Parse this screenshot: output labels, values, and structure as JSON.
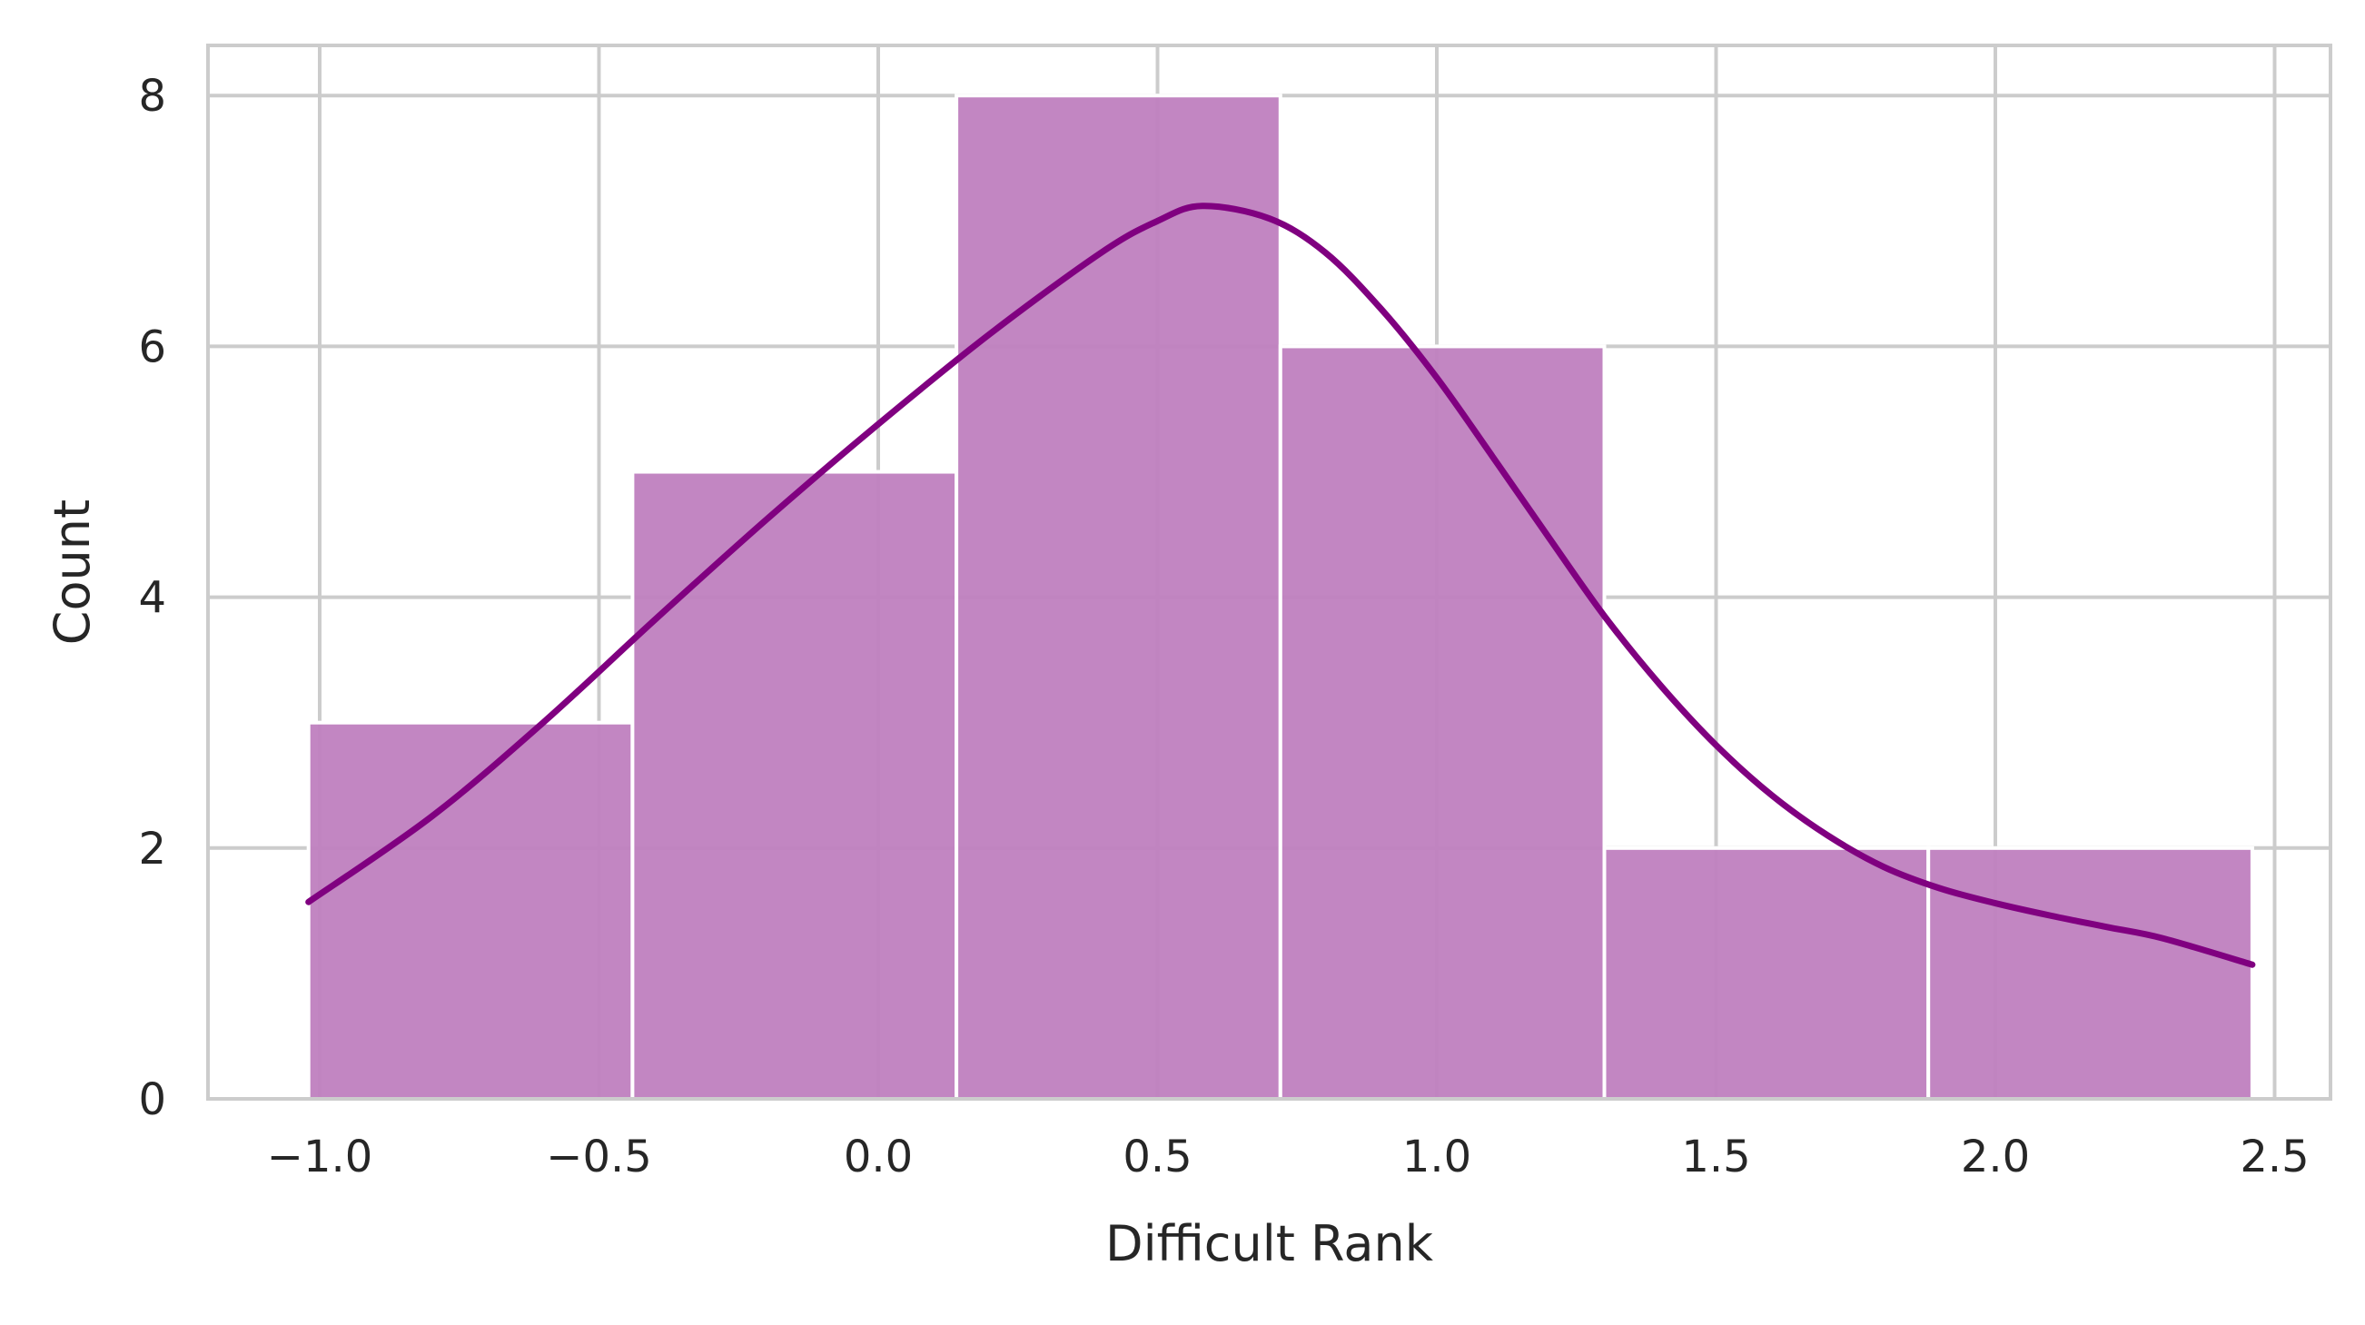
{
  "chart_data": {
    "type": "bar",
    "subtype": "histogram-with-kde",
    "title": "",
    "xlabel": "Difficult Rank",
    "ylabel": "Count",
    "xlim": [
      -1.2,
      2.6
    ],
    "ylim": [
      0,
      8.4
    ],
    "xticks": [
      -1.0,
      -0.5,
      0.0,
      0.5,
      1.0,
      1.5,
      2.0,
      2.5
    ],
    "xtick_labels": [
      "−1.0",
      "−0.5",
      "0.0",
      "0.5",
      "1.0",
      "1.5",
      "2.0",
      "2.5"
    ],
    "yticks": [
      0,
      2,
      4,
      6,
      8
    ],
    "ytick_labels": [
      "0",
      "2",
      "4",
      "6",
      "8"
    ],
    "grid": true,
    "legend": "none",
    "bins": [
      {
        "x0": -1.02,
        "x1": -0.44,
        "count": 3
      },
      {
        "x0": -0.44,
        "x1": 0.14,
        "count": 5
      },
      {
        "x0": 0.14,
        "x1": 0.72,
        "count": 8
      },
      {
        "x0": 0.72,
        "x1": 1.3,
        "count": 6
      },
      {
        "x0": 1.3,
        "x1": 1.88,
        "count": 2
      },
      {
        "x0": 1.88,
        "x1": 2.46,
        "count": 2
      }
    ],
    "kde": {
      "x": [
        -1.02,
        -0.8,
        -0.6,
        -0.4,
        -0.2,
        0.0,
        0.2,
        0.4,
        0.5,
        0.58,
        0.7,
        0.8,
        0.9,
        1.0,
        1.1,
        1.2,
        1.3,
        1.4,
        1.5,
        1.6,
        1.7,
        1.8,
        1.9,
        2.0,
        2.1,
        2.2,
        2.3,
        2.46
      ],
      "y": [
        1.57,
        2.25,
        3.0,
        3.82,
        4.62,
        5.38,
        6.1,
        6.75,
        7.0,
        7.12,
        7.02,
        6.75,
        6.3,
        5.75,
        5.12,
        4.48,
        3.85,
        3.3,
        2.82,
        2.42,
        2.1,
        1.85,
        1.68,
        1.56,
        1.46,
        1.37,
        1.28,
        1.07
      ]
    },
    "colors": {
      "bar_fill": "#bf7fbf",
      "bar_edge": "#ffffff",
      "kde_line": "#800080",
      "grid": "#cccccc",
      "spine": "#cccccc",
      "text": "#262626"
    }
  }
}
